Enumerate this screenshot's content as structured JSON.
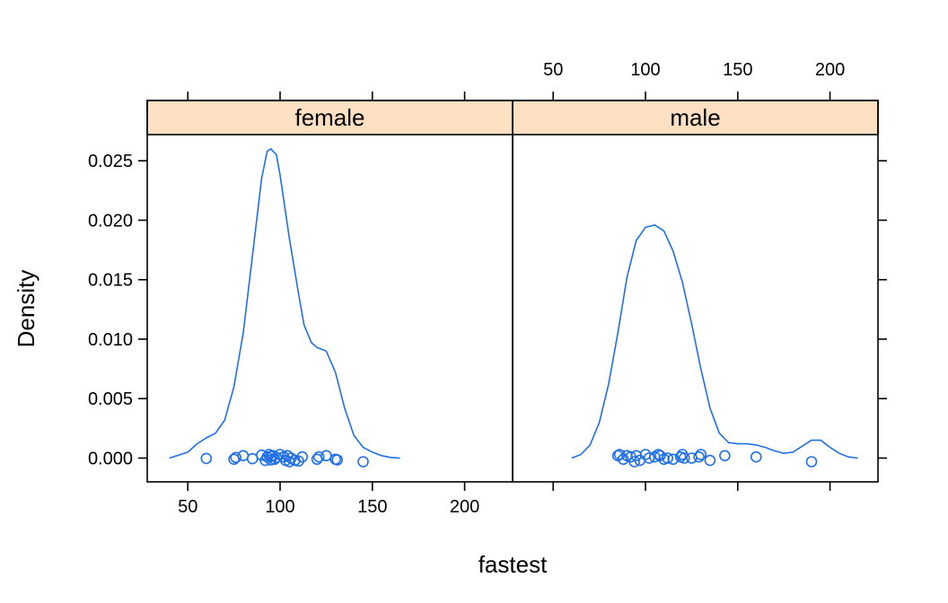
{
  "chart_data": {
    "type": "density",
    "xlabel": "fastest",
    "ylabel": "Density",
    "xlim": [
      28,
      226
    ],
    "ylim": [
      -0.002,
      0.0272
    ],
    "x_ticks": [
      50,
      100,
      150,
      200
    ],
    "y_ticks": [
      0.0,
      0.005,
      0.01,
      0.015,
      0.02,
      0.025
    ],
    "y_tick_labels": [
      "0.000",
      "0.005",
      "0.010",
      "0.015",
      "0.020",
      "0.025"
    ],
    "colors": {
      "line": "#1f6fe8",
      "points": "#1f6fe8",
      "strip": "#ffe0c2",
      "frame": "#000000"
    },
    "panels": [
      {
        "label": "female",
        "density": {
          "x": [
            40,
            50,
            55,
            60,
            65,
            70,
            75,
            80,
            85,
            90,
            93,
            95,
            98,
            100,
            105,
            110,
            113,
            117,
            120,
            125,
            130,
            135,
            140,
            145,
            150,
            155,
            160,
            165
          ],
          "y": [
            0.0,
            0.0005,
            0.0012,
            0.0017,
            0.0021,
            0.0032,
            0.006,
            0.0105,
            0.017,
            0.0235,
            0.0258,
            0.026,
            0.0255,
            0.0238,
            0.0185,
            0.0138,
            0.0112,
            0.0097,
            0.0093,
            0.009,
            0.0072,
            0.0042,
            0.0019,
            0.0009,
            0.0005,
            0.0002,
            5e-05,
            0.0
          ]
        },
        "points": {
          "x": [
            60,
            75,
            76,
            80,
            85,
            90,
            92,
            93,
            94,
            95,
            95,
            96,
            97,
            98,
            100,
            102,
            103,
            104,
            105,
            106,
            108,
            110,
            112,
            120,
            121,
            125,
            130,
            131,
            145
          ],
          "y": [
            -3e-05,
            -0.0001,
            5e-05,
            0.0002,
            -5e-05,
            0.00025,
            -0.0002,
            0.0001,
            0.0003,
            -0.00015,
            0.00015,
            0.0002,
            -0.0001,
            5e-05,
            0.0003,
            0.0001,
            -0.0002,
            0.0002,
            -0.0003,
            0.0,
            -0.0002,
            -0.00025,
            0.0001,
            -0.0001,
            0.0001,
            0.0002,
            -0.0001,
            -0.00015,
            -0.0003
          ]
        }
      },
      {
        "label": "male",
        "density": {
          "x": [
            60,
            65,
            70,
            75,
            80,
            85,
            90,
            95,
            100,
            105,
            110,
            115,
            120,
            125,
            130,
            135,
            140,
            145,
            150,
            155,
            160,
            165,
            170,
            175,
            180,
            185,
            190,
            195,
            200,
            205,
            210,
            215
          ],
          "y": [
            0.0,
            0.0003,
            0.0011,
            0.003,
            0.0062,
            0.0105,
            0.0152,
            0.0183,
            0.0194,
            0.0196,
            0.0191,
            0.0174,
            0.0148,
            0.0113,
            0.0075,
            0.0042,
            0.0021,
            0.0013,
            0.0012,
            0.0012,
            0.0011,
            0.0009,
            0.0006,
            0.0004,
            0.0005,
            0.001,
            0.0015,
            0.0015,
            0.0009,
            0.0004,
            0.0001,
            0.0
          ]
        },
        "points": {
          "x": [
            85,
            86,
            88,
            90,
            92,
            94,
            95,
            97,
            100,
            102,
            105,
            107,
            108,
            110,
            112,
            115,
            119,
            120,
            121,
            125,
            129,
            130,
            135,
            143,
            160,
            190
          ],
          "y": [
            0.0002,
            0.0003,
            -0.0001,
            0.0002,
            0.0001,
            -0.0003,
            0.0002,
            -0.0002,
            0.0003,
            0.0,
            0.0001,
            0.0003,
            0.0002,
            -0.0001,
            0.0,
            -0.0001,
            0.0001,
            0.0003,
            0.0,
            0.0,
            0.0001,
            0.0003,
            -0.0002,
            0.0002,
            0.0001,
            -0.0003
          ]
        }
      }
    ]
  }
}
